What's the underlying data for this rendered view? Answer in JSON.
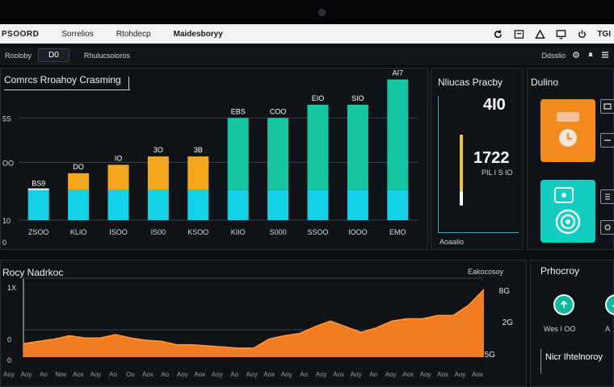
{
  "browser": {
    "tabs": [
      "PSOORD",
      "Sorrelios",
      "Rtohdecp",
      "Maidesboryy"
    ],
    "right_label": "TGI"
  },
  "subbar": {
    "app": "Rooloby",
    "tab": "D0",
    "breadcrumb": "Rhulucsoioros",
    "right_label": "Ddsslio"
  },
  "bar_chart_title": "Comrcs Rroahoy Crasming",
  "kpi": {
    "title": "Nliucas Pracby",
    "value_main": "4I0",
    "value_secondary": "1722",
    "sub_label": "PIL I S IO",
    "footer": "Aoaalio"
  },
  "side": {
    "title": "Dulino"
  },
  "area_chart_title": "Rocy Nadrkoc",
  "area_legend": "Eakocosoy",
  "area_right_labels": [
    "8G",
    "2G",
    "5G"
  ],
  "processing": {
    "title": "Prhocroy",
    "labels": [
      "Wes I OO",
      "A"
    ],
    "footer": "Nicr Ihtelnoroy"
  },
  "colors": {
    "cyan": "#13d1e6",
    "amber": "#f2a71c",
    "teal": "#14c7a2",
    "orange": "#f17c22",
    "kpi_bar": "#f2c23a"
  },
  "chart_data": [
    {
      "type": "bar",
      "title": "Comrcs Rroahoy Crasming",
      "categories": [
        "ZSOO",
        "KLIO",
        "ISOO",
        "IS00",
        "KSOO",
        "KIIO",
        "S000",
        "SSOO",
        "IOOO",
        "EMO"
      ],
      "ytick_labels": [
        "5S",
        "OO",
        "10",
        "0"
      ],
      "series": [
        {
          "name": "base",
          "values": [
            25,
            25,
            25,
            25,
            25,
            25,
            25,
            25,
            25,
            25
          ]
        },
        {
          "name": "upper",
          "values": [
            0,
            14,
            21,
            28,
            28,
            60,
            60,
            71,
            71,
            92
          ]
        }
      ],
      "upper_colors": [
        "none",
        "#f2a71c",
        "#f2a71c",
        "#f2a71c",
        "#f2a71c",
        "#14c7a2",
        "#14c7a2",
        "#14c7a2",
        "#14c7a2",
        "#14c7a2"
      ],
      "data_labels": [
        "BS9",
        "DO",
        "IO",
        "3O",
        "3B",
        "EBS",
        "COO",
        "EIO",
        "SIO",
        "AI7"
      ],
      "ylim": [
        0,
        110
      ]
    },
    {
      "type": "area",
      "title": "Rocy Nadrkoc",
      "ytick_labels": [
        "1X",
        "0",
        "0"
      ],
      "x": [
        0,
        1,
        2,
        3,
        4,
        5,
        6,
        7,
        8,
        9,
        10,
        11,
        12,
        13,
        14,
        15,
        16,
        17,
        18,
        19,
        20,
        21,
        22,
        23,
        24,
        25,
        26,
        27,
        28,
        29,
        30
      ],
      "values": [
        12,
        14,
        16,
        19,
        17,
        17,
        20,
        17,
        15,
        14,
        11,
        11,
        10,
        9,
        8,
        8,
        16,
        19,
        21,
        27,
        32,
        27,
        22,
        26,
        32,
        34,
        34,
        37,
        37,
        46,
        60
      ],
      "xtick_labels": [
        "Aoy",
        "Aoy",
        "Ao",
        "Nov",
        "Aox",
        "Aoy",
        "Ao",
        "Oo",
        "Aox",
        "Ao",
        "Aoy",
        "Aox",
        "Aoy",
        "Ao",
        "Aoy",
        "Aox",
        "Aoy",
        "Ao",
        "Aoy",
        "Aox",
        "Aoy",
        "Ao",
        "Aoy",
        "Aox",
        "Aoy",
        "Aox",
        "Aoy",
        "Aox"
      ],
      "ylim": [
        0,
        70
      ]
    }
  ]
}
